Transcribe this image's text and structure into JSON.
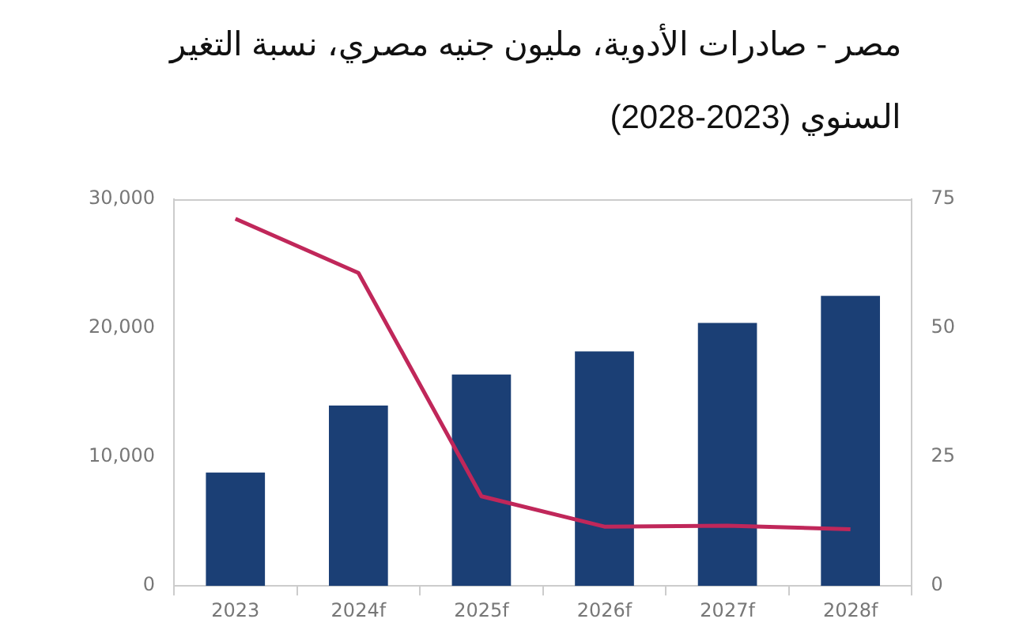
{
  "chart_data": {
    "type": "bar",
    "title": "مصر - صادرات الأدوية، مليون جنيه مصري، نسبة التغير السنوي (2023-2028)",
    "categories": [
      "2023",
      "2024f",
      "2025f",
      "2026f",
      "2027f",
      "2028f"
    ],
    "series": [
      {
        "color": "#1b3f75",
        "values": [
          8800,
          14000,
          16400,
          18200,
          20400,
          22500
        ]
      },
      {
        "type": "line",
        "color": "#c0275a",
        "axis": "y2",
        "values": [
          71.2,
          60.7,
          17.4,
          11.5,
          11.7,
          11.0
        ]
      }
    ],
    "ylim": [
      0,
      30000
    ],
    "yticks": [
      {
        "value": 0,
        "label": "0"
      },
      {
        "value": 10000,
        "label": "10,000"
      },
      {
        "value": 20000,
        "label": "20,000"
      },
      {
        "value": 30000,
        "label": "30,000"
      }
    ],
    "y2lim": [
      0,
      75
    ],
    "y2ticks": [
      0,
      25,
      50,
      75
    ],
    "grid": false,
    "legend": false,
    "marker": "none"
  }
}
